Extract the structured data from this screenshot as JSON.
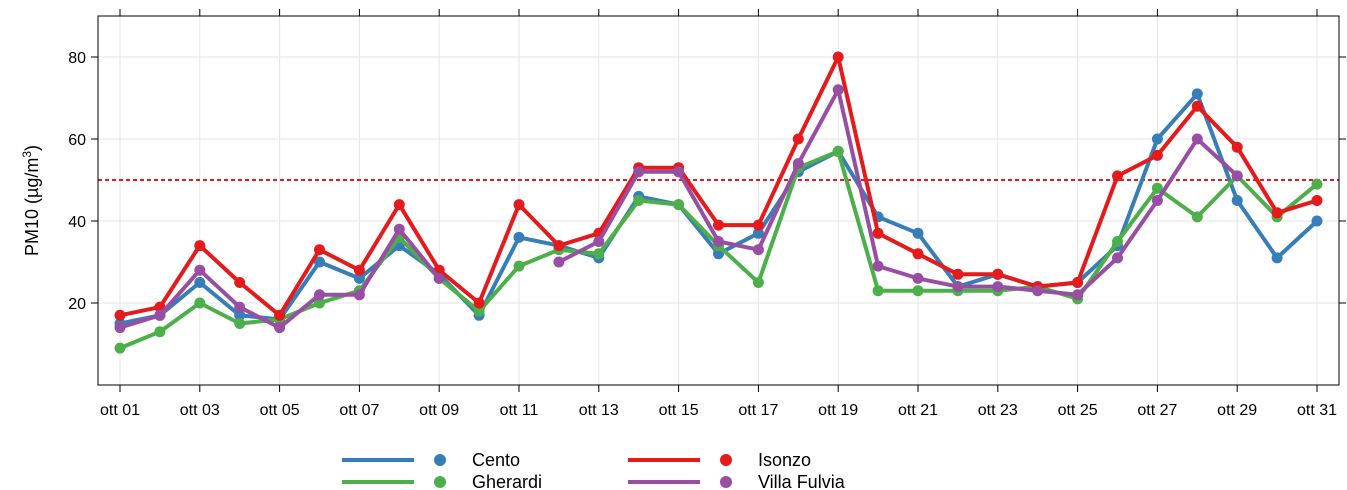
{
  "chart_data": {
    "type": "line",
    "title": "",
    "xlabel": "",
    "ylabel": "PM10 (μg/m³)",
    "ylabel_base": "PM10 (µg/m",
    "ylabel_sup": "3",
    "ylabel_close": ")",
    "x": [
      "ott 01",
      "ott 02",
      "ott 03",
      "ott 04",
      "ott 05",
      "ott 06",
      "ott 07",
      "ott 08",
      "ott 09",
      "ott 10",
      "ott 11",
      "ott 12",
      "ott 13",
      "ott 14",
      "ott 15",
      "ott 16",
      "ott 17",
      "ott 18",
      "ott 19",
      "ott 20",
      "ott 21",
      "ott 22",
      "ott 23",
      "ott 24",
      "ott 25",
      "ott 26",
      "ott 27",
      "ott 28",
      "ott 29",
      "ott 30",
      "ott 31"
    ],
    "x_tick_labels": [
      "ott 01",
      "ott 03",
      "ott 05",
      "ott 07",
      "ott 09",
      "ott 11",
      "ott 13",
      "ott 15",
      "ott 17",
      "ott 19",
      "ott 21",
      "ott 23",
      "ott 25",
      "ott 27",
      "ott 29",
      "ott 31"
    ],
    "y_ticks": [
      20,
      40,
      60,
      80
    ],
    "ylim": [
      0,
      90
    ],
    "grid": true,
    "legend_position": "bottom",
    "threshold": {
      "value": 50,
      "color": "#e41a1c",
      "style": "dotted"
    },
    "series": [
      {
        "name": "Cento",
        "color": "#377eb8",
        "values": [
          15,
          17,
          25,
          17,
          16,
          30,
          26,
          34,
          27,
          17,
          36,
          34,
          31,
          46,
          44,
          32,
          37,
          52,
          57,
          41,
          37,
          24,
          27,
          24,
          25,
          34,
          60,
          71,
          45,
          31,
          40
        ]
      },
      {
        "name": "Gherardi",
        "color": "#4daf4a",
        "values": [
          9,
          13,
          20,
          15,
          16,
          20,
          23,
          36,
          26,
          18,
          29,
          33,
          32,
          45,
          44,
          34,
          25,
          53,
          57,
          23,
          23,
          23,
          23,
          24,
          21,
          35,
          48,
          41,
          51,
          41,
          49
        ]
      },
      {
        "name": "Isonzo",
        "color": "#e41a1c",
        "values": [
          17,
          19,
          34,
          25,
          17,
          33,
          28,
          44,
          28,
          20,
          44,
          34,
          37,
          53,
          53,
          39,
          39,
          60,
          80,
          37,
          32,
          27,
          27,
          24,
          25,
          51,
          56,
          68,
          58,
          42,
          45
        ]
      },
      {
        "name": "Villa Fulvia",
        "color": "#984ea3",
        "values": [
          14,
          17,
          28,
          19,
          14,
          22,
          22,
          38,
          26,
          null,
          null,
          30,
          35,
          52,
          52,
          35,
          33,
          54,
          72,
          29,
          26,
          24,
          24,
          23,
          22,
          31,
          45,
          60,
          51,
          null,
          null
        ]
      }
    ]
  }
}
